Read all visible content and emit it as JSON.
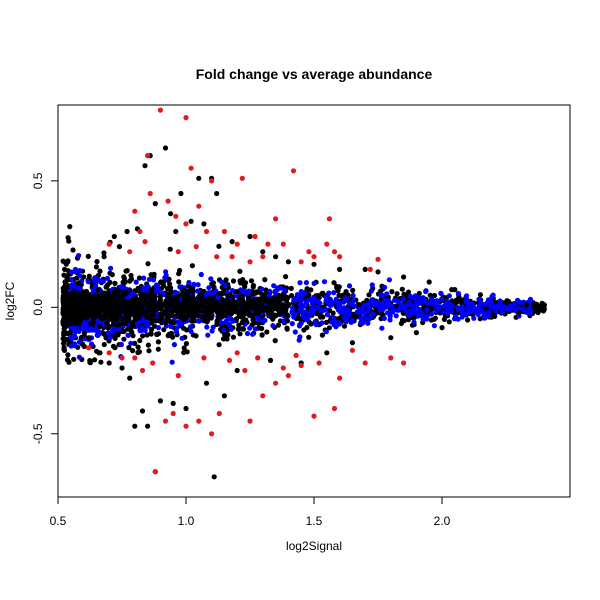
{
  "chart_data": {
    "type": "scatter",
    "title": "Fold change vs average abundance",
    "xlabel": "log2Signal",
    "ylabel": "log2FC",
    "xlim": [
      0.5,
      2.5
    ],
    "ylim": [
      -0.75,
      0.8
    ],
    "x_ticks": [
      {
        "value": 0.5,
        "label": "0.5"
      },
      {
        "value": 1.0,
        "label": "1.0"
      },
      {
        "value": 1.5,
        "label": "1.5"
      },
      {
        "value": 2.0,
        "label": "2.0"
      }
    ],
    "y_ticks": [
      {
        "value": -0.5,
        "label": "-0.5"
      },
      {
        "value": 0.0,
        "label": "0.0"
      },
      {
        "value": 0.5,
        "label": "0.5"
      }
    ],
    "grid": false,
    "colors": {
      "black": "#000000",
      "blue": "#0000ff",
      "red": "#e31a1c"
    },
    "series": [
      {
        "color": "black",
        "points": [
          [
            0.55,
            0.02
          ],
          [
            0.57,
            -0.05
          ],
          [
            0.6,
            0.12
          ],
          [
            0.62,
            -0.12
          ],
          [
            0.65,
            0.16
          ],
          [
            0.66,
            -0.18
          ],
          [
            0.68,
            0.2
          ],
          [
            0.7,
            -0.22
          ],
          [
            0.72,
            0.28
          ],
          [
            0.74,
            0.24
          ],
          [
            0.75,
            -0.24
          ],
          [
            0.77,
            0.3
          ],
          [
            0.78,
            -0.28
          ],
          [
            0.8,
            -0.47
          ],
          [
            0.81,
            0.31
          ],
          [
            0.83,
            -0.41
          ],
          [
            0.84,
            0.56
          ],
          [
            0.85,
            -0.47
          ],
          [
            0.86,
            0.6
          ],
          [
            0.88,
            0.41
          ],
          [
            0.88,
            -0.65
          ],
          [
            0.9,
            -0.37
          ],
          [
            0.92,
            0.63
          ],
          [
            0.94,
            0.37
          ],
          [
            0.95,
            -0.38
          ],
          [
            0.96,
            0.3
          ],
          [
            0.98,
            0.45
          ],
          [
            1.0,
            -0.4
          ],
          [
            1.02,
            0.34
          ],
          [
            1.05,
            0.51
          ],
          [
            1.07,
            0.33
          ],
          [
            1.08,
            -0.3
          ],
          [
            1.1,
            0.51
          ],
          [
            1.11,
            -0.67
          ],
          [
            1.12,
            0.45
          ],
          [
            1.15,
            -0.35
          ],
          [
            1.18,
            0.26
          ],
          [
            1.2,
            -0.25
          ],
          [
            1.25,
            0.28
          ],
          [
            1.3,
            0.22
          ],
          [
            1.33,
            -0.21
          ],
          [
            1.35,
            0.2
          ],
          [
            1.4,
            0.18
          ],
          [
            1.45,
            -0.22
          ],
          [
            1.5,
            0.17
          ],
          [
            1.55,
            -0.18
          ],
          [
            1.6,
            0.15
          ],
          [
            1.65,
            -0.14
          ],
          [
            1.7,
            0.15
          ],
          [
            1.75,
            0.14
          ],
          [
            1.8,
            -0.12
          ],
          [
            1.85,
            0.12
          ],
          [
            1.9,
            -0.1
          ],
          [
            1.95,
            0.1
          ],
          [
            2.0,
            -0.08
          ],
          [
            2.05,
            0.07
          ],
          [
            2.1,
            -0.05
          ],
          [
            2.15,
            0.05
          ],
          [
            2.2,
            -0.03
          ],
          [
            2.25,
            0.02
          ],
          [
            2.3,
            -0.02
          ],
          [
            2.33,
            0.01
          ],
          [
            2.36,
            0.0
          ],
          [
            2.39,
            -0.01
          ]
        ]
      },
      {
        "color": "red",
        "points": [
          [
            0.9,
            0.78
          ],
          [
            1.0,
            0.75
          ],
          [
            0.85,
            0.6
          ],
          [
            1.02,
            0.55
          ],
          [
            1.1,
            0.5
          ],
          [
            1.22,
            0.51
          ],
          [
            1.42,
            0.54
          ],
          [
            1.56,
            0.35
          ],
          [
            0.8,
            0.38
          ],
          [
            0.86,
            0.45
          ],
          [
            0.93,
            0.42
          ],
          [
            0.96,
            0.36
          ],
          [
            1.0,
            0.33
          ],
          [
            1.05,
            0.4
          ],
          [
            1.08,
            0.3
          ],
          [
            1.15,
            0.3
          ],
          [
            1.2,
            0.25
          ],
          [
            1.27,
            0.28
          ],
          [
            1.32,
            0.25
          ],
          [
            1.35,
            0.35
          ],
          [
            1.38,
            0.25
          ],
          [
            1.48,
            0.22
          ],
          [
            1.55,
            0.25
          ],
          [
            1.58,
            0.22
          ],
          [
            1.6,
            0.2
          ],
          [
            1.72,
            0.15
          ],
          [
            1.75,
            0.19
          ],
          [
            0.7,
            0.25
          ],
          [
            0.78,
            0.22
          ],
          [
            0.82,
            0.3
          ],
          [
            0.84,
            0.26
          ],
          [
            0.97,
            0.22
          ],
          [
            1.04,
            0.24
          ],
          [
            1.12,
            0.2
          ],
          [
            1.18,
            0.2
          ],
          [
            1.25,
            0.18
          ],
          [
            1.3,
            0.2
          ],
          [
            1.45,
            0.18
          ],
          [
            1.5,
            0.2
          ],
          [
            0.88,
            -0.65
          ],
          [
            0.92,
            -0.45
          ],
          [
            0.95,
            -0.42
          ],
          [
            1.0,
            -0.47
          ],
          [
            1.05,
            -0.45
          ],
          [
            1.1,
            -0.5
          ],
          [
            1.13,
            -0.42
          ],
          [
            1.25,
            -0.45
          ],
          [
            1.5,
            -0.43
          ],
          [
            1.58,
            -0.4
          ],
          [
            1.3,
            -0.35
          ],
          [
            1.35,
            -0.3
          ],
          [
            1.4,
            -0.27
          ],
          [
            1.45,
            -0.23
          ],
          [
            1.6,
            -0.28
          ],
          [
            1.7,
            -0.22
          ],
          [
            1.8,
            -0.2
          ],
          [
            1.85,
            -0.22
          ],
          [
            0.62,
            -0.16
          ],
          [
            0.7,
            -0.18
          ],
          [
            0.75,
            -0.2
          ],
          [
            0.8,
            -0.2
          ],
          [
            0.83,
            -0.25
          ],
          [
            0.87,
            -0.22
          ],
          [
            0.97,
            -0.27
          ],
          [
            1.07,
            -0.2
          ],
          [
            1.17,
            -0.21
          ],
          [
            1.2,
            -0.18
          ],
          [
            1.23,
            -0.25
          ],
          [
            1.28,
            -0.2
          ],
          [
            1.38,
            -0.24
          ],
          [
            1.43,
            -0.19
          ],
          [
            1.52,
            -0.22
          ],
          [
            1.65,
            -0.17
          ]
        ]
      }
    ],
    "clouds": [
      {
        "color": "black",
        "x_range": [
          0.52,
          2.4
        ],
        "spread_start": 0.2,
        "spread_end": 0.02,
        "count": 1400,
        "seed": 11
      },
      {
        "color": "blue",
        "x_range": [
          0.55,
          2.35
        ],
        "spread_start": 0.16,
        "spread_end": 0.03,
        "count": 900,
        "seed": 23
      },
      {
        "color": "black",
        "x_range": [
          0.52,
          1.4
        ],
        "spread_start": 0.07,
        "spread_end": 0.05,
        "count": 900,
        "seed": 37
      }
    ]
  }
}
